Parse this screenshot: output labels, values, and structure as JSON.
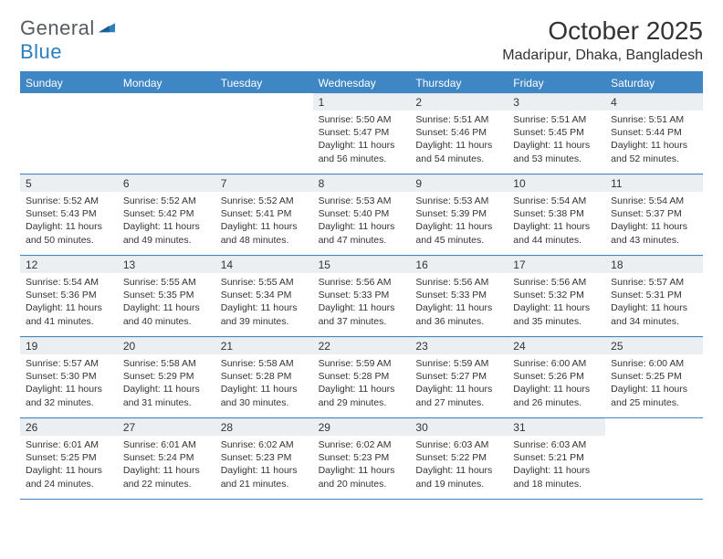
{
  "logo": {
    "general": "General",
    "blue": "Blue"
  },
  "title": "October 2025",
  "location": "Madaripur, Dhaka, Bangladesh",
  "colors": {
    "header_bg": "#3e86c4",
    "header_text": "#ffffff",
    "daynum_bg": "#eceff1",
    "border": "#3e86c4",
    "text": "#333333",
    "logo_gray": "#555b61",
    "logo_blue": "#2a7fbf",
    "page_bg": "#ffffff"
  },
  "typography": {
    "title_fontsize": 28,
    "location_fontsize": 16,
    "dayheader_fontsize": 12,
    "daynum_fontsize": 12,
    "info_fontsize": 10.5
  },
  "day_headers": [
    "Sunday",
    "Monday",
    "Tuesday",
    "Wednesday",
    "Thursday",
    "Friday",
    "Saturday"
  ],
  "weeks": [
    [
      {
        "n": "",
        "sr": "",
        "ss": "",
        "dl": ""
      },
      {
        "n": "",
        "sr": "",
        "ss": "",
        "dl": ""
      },
      {
        "n": "",
        "sr": "",
        "ss": "",
        "dl": ""
      },
      {
        "n": "1",
        "sr": "Sunrise: 5:50 AM",
        "ss": "Sunset: 5:47 PM",
        "dl": "Daylight: 11 hours and 56 minutes."
      },
      {
        "n": "2",
        "sr": "Sunrise: 5:51 AM",
        "ss": "Sunset: 5:46 PM",
        "dl": "Daylight: 11 hours and 54 minutes."
      },
      {
        "n": "3",
        "sr": "Sunrise: 5:51 AM",
        "ss": "Sunset: 5:45 PM",
        "dl": "Daylight: 11 hours and 53 minutes."
      },
      {
        "n": "4",
        "sr": "Sunrise: 5:51 AM",
        "ss": "Sunset: 5:44 PM",
        "dl": "Daylight: 11 hours and 52 minutes."
      }
    ],
    [
      {
        "n": "5",
        "sr": "Sunrise: 5:52 AM",
        "ss": "Sunset: 5:43 PM",
        "dl": "Daylight: 11 hours and 50 minutes."
      },
      {
        "n": "6",
        "sr": "Sunrise: 5:52 AM",
        "ss": "Sunset: 5:42 PM",
        "dl": "Daylight: 11 hours and 49 minutes."
      },
      {
        "n": "7",
        "sr": "Sunrise: 5:52 AM",
        "ss": "Sunset: 5:41 PM",
        "dl": "Daylight: 11 hours and 48 minutes."
      },
      {
        "n": "8",
        "sr": "Sunrise: 5:53 AM",
        "ss": "Sunset: 5:40 PM",
        "dl": "Daylight: 11 hours and 47 minutes."
      },
      {
        "n": "9",
        "sr": "Sunrise: 5:53 AM",
        "ss": "Sunset: 5:39 PM",
        "dl": "Daylight: 11 hours and 45 minutes."
      },
      {
        "n": "10",
        "sr": "Sunrise: 5:54 AM",
        "ss": "Sunset: 5:38 PM",
        "dl": "Daylight: 11 hours and 44 minutes."
      },
      {
        "n": "11",
        "sr": "Sunrise: 5:54 AM",
        "ss": "Sunset: 5:37 PM",
        "dl": "Daylight: 11 hours and 43 minutes."
      }
    ],
    [
      {
        "n": "12",
        "sr": "Sunrise: 5:54 AM",
        "ss": "Sunset: 5:36 PM",
        "dl": "Daylight: 11 hours and 41 minutes."
      },
      {
        "n": "13",
        "sr": "Sunrise: 5:55 AM",
        "ss": "Sunset: 5:35 PM",
        "dl": "Daylight: 11 hours and 40 minutes."
      },
      {
        "n": "14",
        "sr": "Sunrise: 5:55 AM",
        "ss": "Sunset: 5:34 PM",
        "dl": "Daylight: 11 hours and 39 minutes."
      },
      {
        "n": "15",
        "sr": "Sunrise: 5:56 AM",
        "ss": "Sunset: 5:33 PM",
        "dl": "Daylight: 11 hours and 37 minutes."
      },
      {
        "n": "16",
        "sr": "Sunrise: 5:56 AM",
        "ss": "Sunset: 5:33 PM",
        "dl": "Daylight: 11 hours and 36 minutes."
      },
      {
        "n": "17",
        "sr": "Sunrise: 5:56 AM",
        "ss": "Sunset: 5:32 PM",
        "dl": "Daylight: 11 hours and 35 minutes."
      },
      {
        "n": "18",
        "sr": "Sunrise: 5:57 AM",
        "ss": "Sunset: 5:31 PM",
        "dl": "Daylight: 11 hours and 34 minutes."
      }
    ],
    [
      {
        "n": "19",
        "sr": "Sunrise: 5:57 AM",
        "ss": "Sunset: 5:30 PM",
        "dl": "Daylight: 11 hours and 32 minutes."
      },
      {
        "n": "20",
        "sr": "Sunrise: 5:58 AM",
        "ss": "Sunset: 5:29 PM",
        "dl": "Daylight: 11 hours and 31 minutes."
      },
      {
        "n": "21",
        "sr": "Sunrise: 5:58 AM",
        "ss": "Sunset: 5:28 PM",
        "dl": "Daylight: 11 hours and 30 minutes."
      },
      {
        "n": "22",
        "sr": "Sunrise: 5:59 AM",
        "ss": "Sunset: 5:28 PM",
        "dl": "Daylight: 11 hours and 29 minutes."
      },
      {
        "n": "23",
        "sr": "Sunrise: 5:59 AM",
        "ss": "Sunset: 5:27 PM",
        "dl": "Daylight: 11 hours and 27 minutes."
      },
      {
        "n": "24",
        "sr": "Sunrise: 6:00 AM",
        "ss": "Sunset: 5:26 PM",
        "dl": "Daylight: 11 hours and 26 minutes."
      },
      {
        "n": "25",
        "sr": "Sunrise: 6:00 AM",
        "ss": "Sunset: 5:25 PM",
        "dl": "Daylight: 11 hours and 25 minutes."
      }
    ],
    [
      {
        "n": "26",
        "sr": "Sunrise: 6:01 AM",
        "ss": "Sunset: 5:25 PM",
        "dl": "Daylight: 11 hours and 24 minutes."
      },
      {
        "n": "27",
        "sr": "Sunrise: 6:01 AM",
        "ss": "Sunset: 5:24 PM",
        "dl": "Daylight: 11 hours and 22 minutes."
      },
      {
        "n": "28",
        "sr": "Sunrise: 6:02 AM",
        "ss": "Sunset: 5:23 PM",
        "dl": "Daylight: 11 hours and 21 minutes."
      },
      {
        "n": "29",
        "sr": "Sunrise: 6:02 AM",
        "ss": "Sunset: 5:23 PM",
        "dl": "Daylight: 11 hours and 20 minutes."
      },
      {
        "n": "30",
        "sr": "Sunrise: 6:03 AM",
        "ss": "Sunset: 5:22 PM",
        "dl": "Daylight: 11 hours and 19 minutes."
      },
      {
        "n": "31",
        "sr": "Sunrise: 6:03 AM",
        "ss": "Sunset: 5:21 PM",
        "dl": "Daylight: 11 hours and 18 minutes."
      },
      {
        "n": "",
        "sr": "",
        "ss": "",
        "dl": ""
      }
    ]
  ]
}
